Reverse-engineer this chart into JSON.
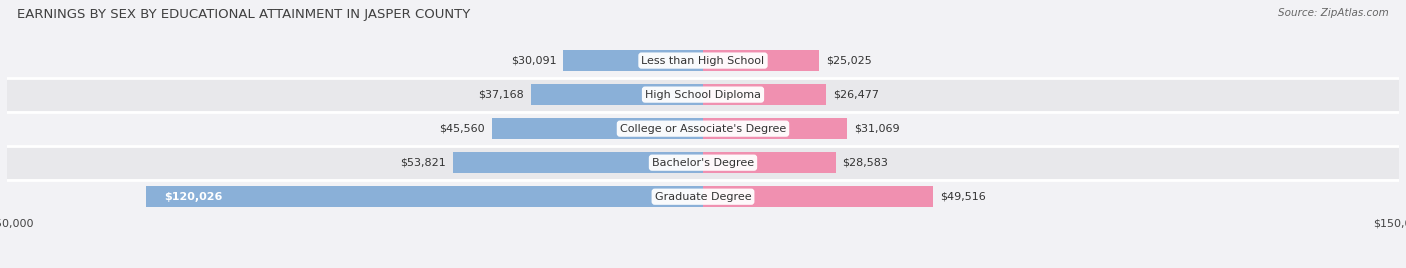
{
  "title": "EARNINGS BY SEX BY EDUCATIONAL ATTAINMENT IN JASPER COUNTY",
  "source": "Source: ZipAtlas.com",
  "categories": [
    "Less than High School",
    "High School Diploma",
    "College or Associate's Degree",
    "Bachelor's Degree",
    "Graduate Degree"
  ],
  "male_values": [
    30091,
    37168,
    45560,
    53821,
    120026
  ],
  "female_values": [
    25025,
    26477,
    31069,
    28583,
    49516
  ],
  "male_labels": [
    "$30,091",
    "$37,168",
    "$45,560",
    "$53,821",
    "$120,026"
  ],
  "female_labels": [
    "$25,025",
    "$26,477",
    "$31,069",
    "$28,583",
    "$49,516"
  ],
  "male_color": "#8ab0d8",
  "female_color": "#f090b0",
  "row_bg_color": "#e8e8eb",
  "row_bg_color2": "#f2f2f5",
  "fig_bg_color": "#f2f2f5",
  "xlim": 150000,
  "title_fontsize": 9.5,
  "label_fontsize": 8.0,
  "tick_fontsize": 8.0,
  "legend_fontsize": 8.5,
  "source_fontsize": 7.5
}
